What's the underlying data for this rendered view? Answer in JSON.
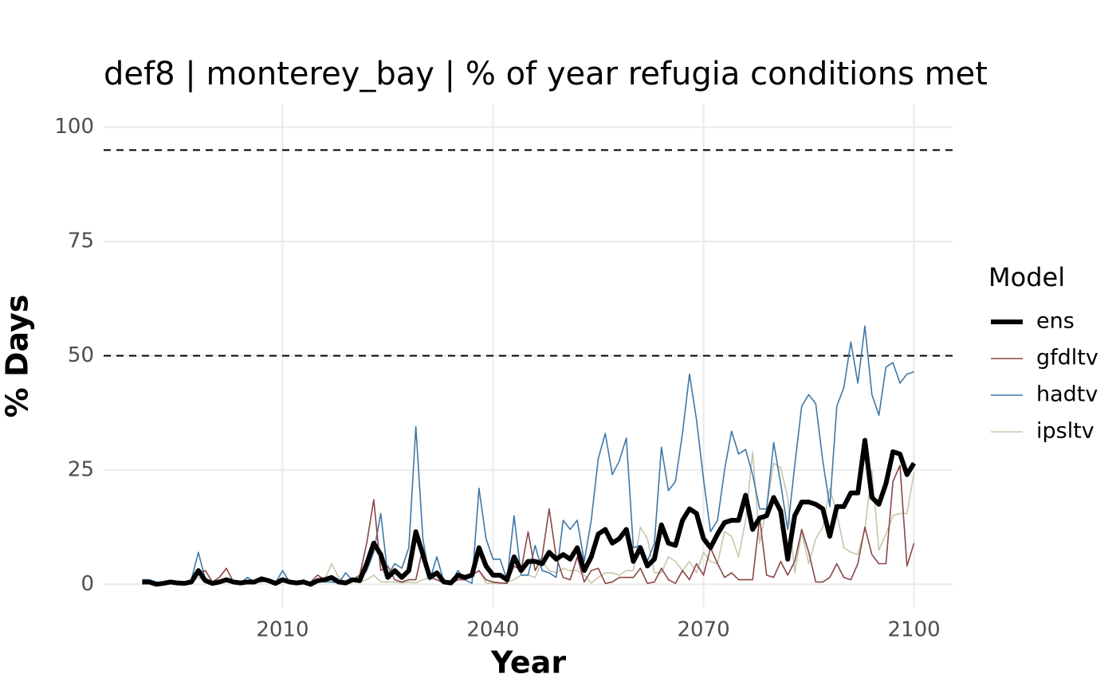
{
  "chart_data": {
    "type": "line",
    "title": "def8 | monterey_bay | % of year refugia conditions met",
    "xlabel": "Year",
    "ylabel": "% Days",
    "legend_title": "Model",
    "legend": "right",
    "grid": true,
    "xlim": [
      1984.5,
      2105.5
    ],
    "xticks": [
      2010,
      2040,
      2070,
      2100
    ],
    "ylim": [
      -5,
      105
    ],
    "yticks": [
      0,
      25,
      50,
      75,
      100
    ],
    "hlines": [
      95,
      50
    ],
    "x": [
      1990,
      1991,
      1992,
      1993,
      1994,
      1995,
      1996,
      1997,
      1998,
      1999,
      2000,
      2001,
      2002,
      2003,
      2004,
      2005,
      2006,
      2007,
      2008,
      2009,
      2010,
      2011,
      2012,
      2013,
      2014,
      2015,
      2016,
      2017,
      2018,
      2019,
      2020,
      2021,
      2022,
      2023,
      2024,
      2025,
      2026,
      2027,
      2028,
      2029,
      2030,
      2031,
      2032,
      2033,
      2034,
      2035,
      2036,
      2037,
      2038,
      2039,
      2040,
      2041,
      2042,
      2043,
      2044,
      2045,
      2046,
      2047,
      2048,
      2049,
      2050,
      2051,
      2052,
      2053,
      2054,
      2055,
      2056,
      2057,
      2058,
      2059,
      2060,
      2061,
      2062,
      2063,
      2064,
      2065,
      2066,
      2067,
      2068,
      2069,
      2070,
      2071,
      2072,
      2073,
      2074,
      2075,
      2076,
      2077,
      2078,
      2079,
      2080,
      2081,
      2082,
      2083,
      2084,
      2085,
      2086,
      2087,
      2088,
      2089,
      2090,
      2091,
      2092,
      2093,
      2094,
      2095,
      2096,
      2097,
      2098,
      2099,
      2100
    ],
    "series": [
      {
        "name": "ens",
        "color": "#000000",
        "width": 6,
        "values": [
          0.5,
          0.5,
          0,
          0.2,
          0.5,
          0.3,
          0.2,
          0.5,
          3,
          0.8,
          0.2,
          0.5,
          1,
          0.5,
          0.3,
          0.5,
          0.5,
          1.2,
          0.8,
          0.2,
          1,
          0.5,
          0.3,
          0.5,
          0,
          0.8,
          1,
          1.5,
          0.5,
          0.3,
          1,
          0.8,
          4.5,
          9,
          6.5,
          1.5,
          3,
          1.5,
          3,
          11.5,
          6.5,
          1.5,
          2.5,
          0.5,
          0.3,
          2,
          1.5,
          2,
          8,
          4,
          2,
          2,
          1,
          6,
          3,
          5,
          5,
          4.5,
          7,
          5.5,
          6.5,
          5.5,
          8,
          3,
          6,
          11,
          12,
          9,
          10,
          12,
          5,
          8,
          4,
          5.5,
          13,
          9,
          8.5,
          14,
          16.5,
          15.5,
          10,
          8,
          11,
          13.5,
          14,
          14,
          19.5,
          12,
          14.5,
          15,
          19,
          16,
          5.5,
          15,
          18,
          18,
          17.5,
          16.5,
          10.5,
          17,
          17,
          20,
          20,
          31.5,
          19,
          17.5,
          22,
          29,
          28.5,
          24,
          26.5
        ]
      },
      {
        "name": "gfdltv",
        "color": "#8b4747",
        "width": 1.6,
        "values": [
          0.5,
          0.5,
          0.3,
          0.3,
          0.5,
          0.3,
          0.3,
          0.5,
          2.5,
          3,
          0.5,
          1.5,
          3.5,
          0.5,
          0.3,
          0.5,
          0.5,
          1,
          0.5,
          0.3,
          0.5,
          0.5,
          0.3,
          0.5,
          0.5,
          2,
          1,
          1,
          0.5,
          0.3,
          1,
          2,
          9,
          18.5,
          3,
          4,
          1,
          0.5,
          1,
          1,
          8,
          1.5,
          1,
          0.2,
          0,
          1,
          1,
          2,
          3,
          1,
          0.5,
          0.3,
          0.2,
          4,
          3,
          11.5,
          3,
          6,
          16.5,
          6,
          1.5,
          1,
          6,
          0.5,
          3,
          3.5,
          0.2,
          0.5,
          1.5,
          1.5,
          1.5,
          3.5,
          0.2,
          0.5,
          3.5,
          1,
          0.2,
          3,
          1,
          4.5,
          2,
          8,
          4.5,
          1.5,
          2.5,
          1,
          1,
          1,
          14.5,
          2,
          1.5,
          5,
          2,
          5,
          12,
          7,
          0.5,
          0.5,
          1.5,
          4.5,
          1.5,
          1,
          4.5,
          12.5,
          6.5,
          4.5,
          4.5,
          22.5,
          26,
          4,
          9
        ]
      },
      {
        "name": "hadtv",
        "color": "#3e78a8",
        "width": 1.6,
        "values": [
          1,
          1,
          0.5,
          0.3,
          0.5,
          0.3,
          0.5,
          1,
          7,
          1,
          0.3,
          0.5,
          1,
          0.5,
          0.3,
          1.5,
          0.5,
          0.5,
          1,
          0.3,
          3,
          0.5,
          0.3,
          1,
          0,
          1,
          0.5,
          0.5,
          0.3,
          2.5,
          0.8,
          1,
          3,
          7,
          15.5,
          2,
          4.5,
          3.5,
          8,
          34.5,
          10,
          1,
          6,
          0.5,
          0.3,
          3,
          1,
          0.2,
          21,
          10,
          5.5,
          5.5,
          1,
          15,
          2,
          2,
          8.5,
          3,
          2.5,
          1.5,
          14,
          12,
          14,
          5,
          14,
          27.5,
          33,
          24,
          27,
          32,
          8,
          8.5,
          5,
          9,
          30,
          20.5,
          22.5,
          33,
          46,
          36,
          23,
          11.5,
          14,
          25,
          33.5,
          28.5,
          29.5,
          24,
          16.5,
          16.5,
          31,
          22,
          12,
          26,
          39,
          41.5,
          39.5,
          27,
          17,
          39,
          43,
          53,
          44,
          56.5,
          41.5,
          37,
          47.5,
          48.5,
          44,
          46,
          46.5
        ]
      },
      {
        "name": "ipsltv",
        "color": "#c7c7ab",
        "width": 1.6,
        "values": [
          0.5,
          0.5,
          0,
          0.3,
          0.3,
          0.2,
          0.5,
          0.3,
          1.5,
          0.5,
          0.2,
          0.3,
          0.5,
          0.5,
          0.2,
          0.5,
          0.3,
          1.5,
          1,
          0.3,
          0.5,
          0.5,
          0.2,
          0.5,
          0,
          0.5,
          1,
          4.5,
          1.5,
          0.5,
          1,
          0.5,
          1,
          2,
          0.5,
          0.5,
          0.5,
          0.3,
          0.5,
          0.3,
          1,
          1.5,
          1,
          0.5,
          0.3,
          1,
          1.5,
          2,
          3,
          0.3,
          0.2,
          0.1,
          0.5,
          1,
          2,
          2,
          1.5,
          5,
          3,
          2.5,
          3.5,
          3,
          3,
          2,
          0.3,
          1.5,
          2.5,
          2.5,
          2,
          3,
          3,
          12.5,
          10,
          2.5,
          2.5,
          6,
          5,
          3,
          5,
          2.5,
          7,
          5,
          4.5,
          11.5,
          10.5,
          6,
          14,
          29,
          9,
          17,
          26.5,
          25.5,
          19,
          2.5,
          11.5,
          4.5,
          10,
          12.5,
          21,
          15.5,
          8,
          7,
          6.5,
          12,
          25,
          7.5,
          11,
          15,
          15.5,
          15.5,
          24.5
        ]
      }
    ]
  }
}
